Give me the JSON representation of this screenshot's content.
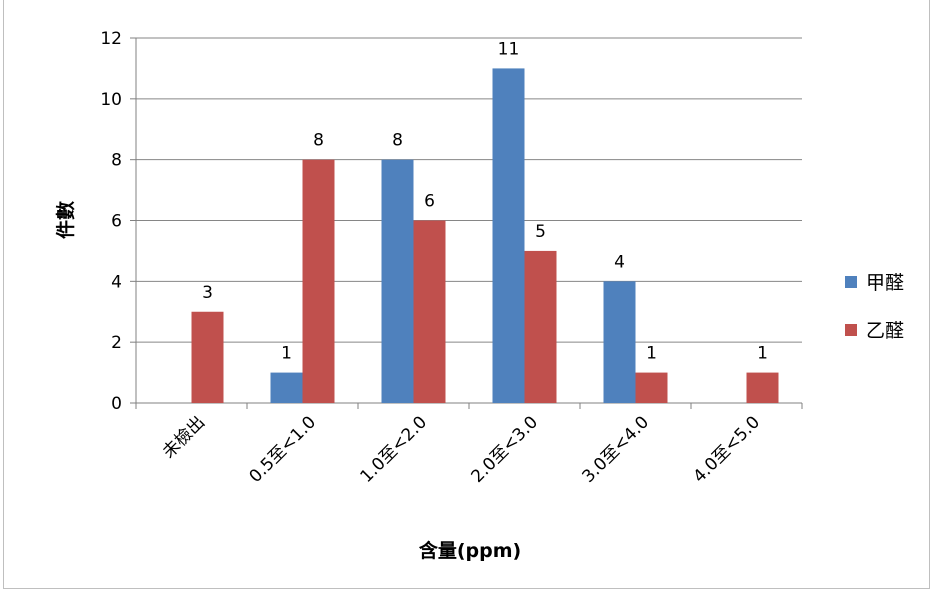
{
  "chart_data": {
    "type": "bar",
    "categories": [
      "未檢出",
      "0.5至<1.0",
      "1.0至<2.0",
      "2.0至<3.0",
      "3.0至<4.0",
      "4.0至<5.0"
    ],
    "series": [
      {
        "name": "甲醛",
        "color": "#4F81BD",
        "values": [
          null,
          1,
          8,
          11,
          4,
          null
        ]
      },
      {
        "name": "乙醛",
        "color": "#C0504D",
        "values": [
          3,
          8,
          6,
          5,
          1,
          1
        ]
      }
    ],
    "xlabel": "含量(ppm)",
    "ylabel": "件數",
    "ylim": [
      0,
      12
    ],
    "yticks": [
      0,
      2,
      4,
      6,
      8,
      10,
      12
    ],
    "grid": true,
    "legend_position": "right"
  }
}
